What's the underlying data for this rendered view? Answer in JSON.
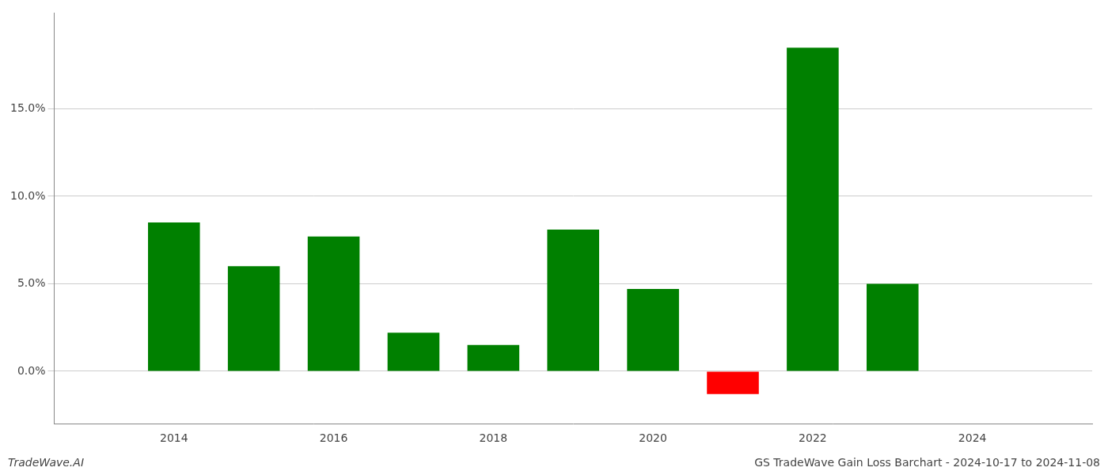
{
  "chart_data": {
    "type": "bar",
    "title": "GS TradeWave Gain Loss Barchart - 2024-10-17 to 2024-11-08",
    "annotations": [
      "TradeWave.AI"
    ],
    "x": [
      2014,
      2015,
      2016,
      2017,
      2018,
      2019,
      2020,
      2021,
      2022,
      2023
    ],
    "values": [
      0.085,
      0.06,
      0.077,
      0.022,
      0.015,
      0.081,
      0.047,
      -0.013,
      0.185,
      0.05
    ],
    "colors": [
      "#008000",
      "#008000",
      "#008000",
      "#008000",
      "#008000",
      "#008000",
      "#008000",
      "#ff0000",
      "#008000",
      "#008000"
    ],
    "xlim": [
      2012.5,
      2025.5
    ],
    "xticks": [
      2014,
      2016,
      2018,
      2020,
      2022,
      2024
    ],
    "ylim": [
      -0.03,
      0.205
    ],
    "yticks": [
      {
        "value": 0.0,
        "label": "0.0%"
      },
      {
        "value": 0.05,
        "label": "5.0%"
      },
      {
        "value": 0.1,
        "label": "10.0%"
      },
      {
        "value": 0.15,
        "label": "15.0%"
      }
    ],
    "grid": true
  }
}
